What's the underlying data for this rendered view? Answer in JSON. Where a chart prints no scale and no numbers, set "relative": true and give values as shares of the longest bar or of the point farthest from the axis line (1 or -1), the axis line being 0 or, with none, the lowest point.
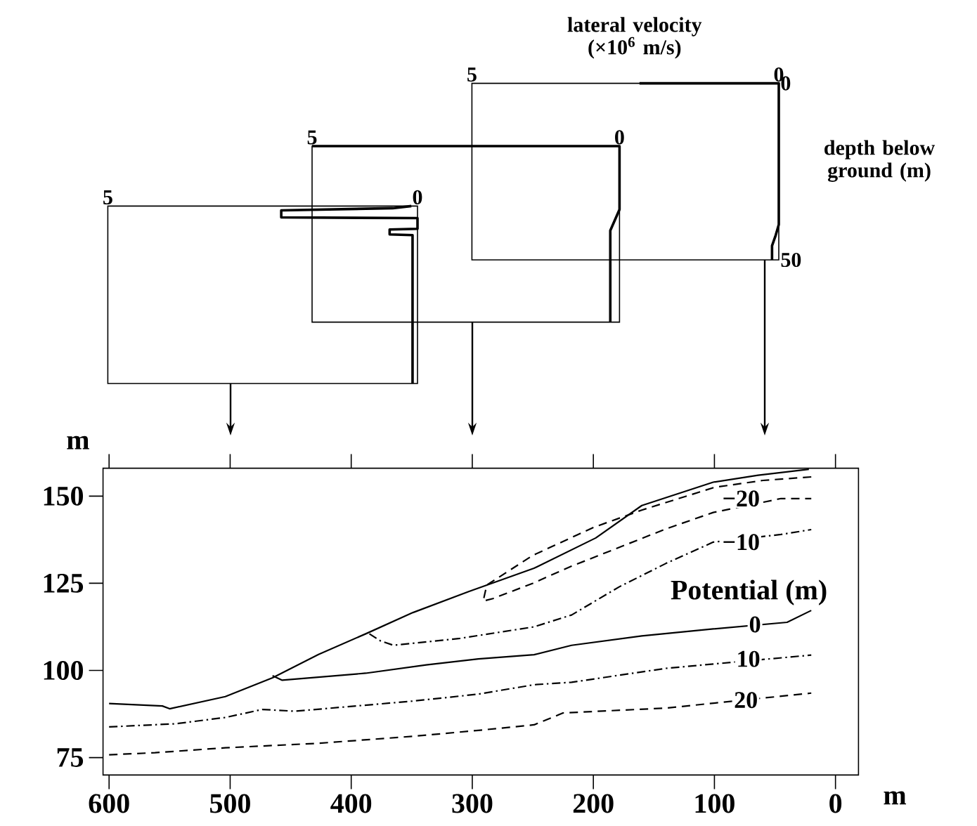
{
  "chart_data": [
    {
      "type": "line",
      "xlim": [
        5,
        0
      ],
      "relative": true,
      "xticks": [
        5,
        0
      ],
      "tick_labels": "x",
      "marker": "none",
      "series": [
        {
          "color": "#000000",
          "line_style": "solid",
          "x": [
            0.1,
            0.4,
            2.2,
            2.2,
            0.0,
            0.0,
            0.45,
            0.45,
            0.08,
            0.08
          ],
          "values": [
            0,
            -0.012,
            -0.024,
            -0.064,
            -0.068,
            -0.128,
            -0.132,
            -0.16,
            -0.164,
            -1
          ]
        }
      ]
    },
    {
      "type": "line",
      "xlim": [
        5,
        0
      ],
      "relative": true,
      "xticks": [
        5,
        0
      ],
      "tick_labels": "x",
      "marker": "none",
      "series": [
        {
          "color": "#000000",
          "line_style": "solid",
          "x": [
            5,
            0,
            0,
            0.15,
            0.15
          ],
          "values": [
            0,
            0,
            -0.36,
            -0.48,
            -1
          ]
        }
      ]
    },
    {
      "type": "line",
      "xlim": [
        5,
        0
      ],
      "ylim": [
        50,
        0
      ],
      "xticks": [
        5,
        0
      ],
      "yticks": [
        0,
        50
      ],
      "xlabel": "lateral velocity (×10$^{6}$ m/s)",
      "ylabel": "depth below ground (m)",
      "marker": "none",
      "series": [
        {
          "color": "#000000",
          "line_style": "solid",
          "x": [
            2.27,
            0,
            0,
            0.05,
            0.11,
            0.11
          ],
          "values": [
            0,
            0,
            40,
            43,
            46,
            50
          ]
        }
      ]
    },
    {
      "type": "line",
      "xlim": [
        605,
        -19
      ],
      "ylim": [
        70,
        158
      ],
      "xticks": [
        600,
        500,
        400,
        300,
        200,
        100,
        0
      ],
      "yticks": [
        75,
        100,
        125,
        150
      ],
      "xlabel": "m",
      "ylabel": "m",
      "marker": "none",
      "grid": false,
      "annotations": [
        {
          "text": "−20",
          "x": 78,
          "y": 149.3
        },
        {
          "text": "−10",
          "x": 78,
          "y": 136.8
        },
        {
          "text": "0",
          "x": 66.5,
          "y": 113.2
        },
        {
          "text": "10",
          "x": 72,
          "y": 103.3
        },
        {
          "text": "20",
          "x": 74,
          "y": 91.5
        },
        "Potential (m)"
      ],
      "series": [
        {
          "color": "#000000",
          "line_style": "solid",
          "x": [
            600,
            556,
            550,
            504,
            465,
            427,
            388,
            349,
            303,
            249,
            198,
            160,
            101,
            64,
            22
          ],
          "values": [
            90.5,
            89.8,
            89.0,
            92.5,
            97.9,
            104.6,
            110.5,
            116.6,
            122.6,
            129.3,
            138.0,
            147.3,
            154.0,
            156.0,
            157.7
          ]
        },
        {
          "color": "#000000",
          "line_style": "dashed",
          "x": [
            20,
            60,
            100,
            160,
            200,
            250,
            288,
            291,
            283,
            250,
            218,
            140,
            101,
            45,
            20
          ],
          "values": [
            155.5,
            154.5,
            152.5,
            146.0,
            141.0,
            133.0,
            124.5,
            119.9,
            120.6,
            125.0,
            129.9,
            140.6,
            145.3,
            149.3,
            149.3
          ]
        },
        {
          "color": "#000000",
          "line_style": "dashdot",
          "x": [
            385,
            376,
            365,
            310,
            249,
            218,
            179,
            140,
            101,
            45,
            20
          ],
          "values": [
            110.5,
            108.5,
            107.2,
            109.2,
            112.5,
            115.9,
            123.9,
            130.7,
            136.8,
            139.0,
            140.4
          ]
        },
        {
          "color": "#000000",
          "line_style": "solid",
          "x": [
            465,
            457,
            388,
            338,
            295,
            249,
            218,
            160,
            101,
            40,
            20
          ],
          "values": [
            98.5,
            97.2,
            99.2,
            101.6,
            103.3,
            104.5,
            107.2,
            109.9,
            111.9,
            113.8,
            117.2
          ]
        },
        {
          "color": "#000000",
          "line_style": "dashdot",
          "x": [
            600,
            545,
            504,
            473.5,
            446.5,
            349,
            295,
            249,
            218,
            140,
            20
          ],
          "values": [
            83.8,
            84.7,
            86.5,
            88.8,
            88.3,
            91.2,
            93.2,
            95.9,
            96.6,
            100.6,
            104.4
          ]
        },
        {
          "color": "#000000",
          "line_style": "dashed",
          "x": [
            600,
            562,
            504,
            427,
            349,
            295,
            249,
            225,
            140,
            20
          ],
          "values": [
            75.8,
            76.4,
            77.8,
            79.1,
            81.1,
            82.8,
            84.4,
            87.8,
            89.2,
            93.5
          ]
        }
      ]
    }
  ]
}
